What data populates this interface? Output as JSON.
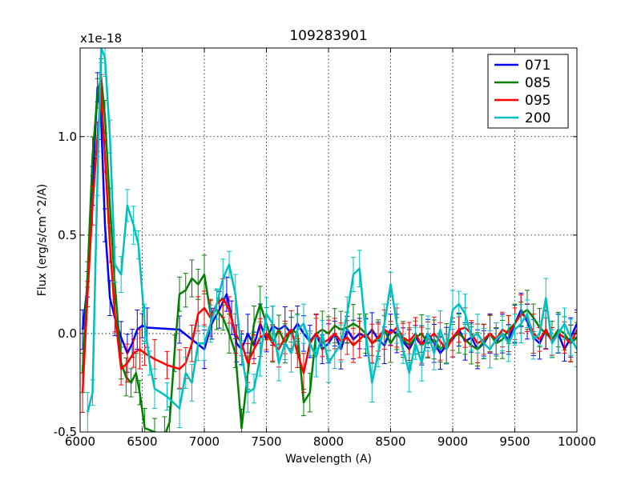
{
  "chart_data": {
    "type": "line",
    "title": "109283901",
    "xlabel": "Wavelength (A)",
    "ylabel": "Flux (erg/s/cm^2/A)",
    "y_scale_note": "x1e-18",
    "xlim": [
      6000,
      10000
    ],
    "ylim": [
      -0.5,
      1.45
    ],
    "grid": true,
    "legend_position": "top-right",
    "x_ticks": [
      6000,
      6500,
      7000,
      7500,
      8000,
      8500,
      9000,
      9500,
      10000
    ],
    "x_tick_labels": [
      "6000",
      "6500",
      "7000",
      "7500",
      "8000",
      "8500",
      "9000",
      "9500",
      "10000"
    ],
    "y_ticks": [
      -0.5,
      0.0,
      0.5,
      1.0
    ],
    "y_tick_labels": [
      "-0.5",
      "0.0",
      "0.5",
      "1.0"
    ],
    "series": [
      {
        "name": "071",
        "color": "#0000ff",
        "x": [
          6020,
          6060,
          6100,
          6140,
          6170,
          6200,
          6240,
          6280,
          6330,
          6380,
          6420,
          6460,
          6500,
          6540,
          6800,
          7000,
          7060,
          7120,
          7180,
          7220,
          7260,
          7300,
          7350,
          7400,
          7450,
          7500,
          7550,
          7600,
          7650,
          7700,
          7750,
          7800,
          7850,
          7900,
          7950,
          8000,
          8050,
          8100,
          8150,
          8200,
          8250,
          8300,
          8350,
          8400,
          8450,
          8500,
          8550,
          8600,
          8650,
          8700,
          8750,
          8800,
          8850,
          8900,
          8950,
          9000,
          9050,
          9100,
          9150,
          9200,
          9250,
          9300,
          9350,
          9400,
          9450,
          9500,
          9550,
          9600,
          9650,
          9700,
          9750,
          9800,
          9850,
          9900,
          9950,
          10000
        ],
        "y": [
          0.02,
          0.25,
          0.75,
          1.25,
          1.08,
          0.55,
          0.18,
          0.08,
          -0.02,
          -0.1,
          -0.05,
          0.02,
          0.04,
          0.03,
          0.02,
          -0.08,
          0.05,
          0.12,
          0.2,
          0.08,
          -0.05,
          -0.08,
          0.0,
          -0.06,
          0.05,
          -0.03,
          0.04,
          0.02,
          0.04,
          0.0,
          0.05,
          0.0,
          -0.04,
          0.0,
          -0.08,
          -0.05,
          0.0,
          -0.08,
          0.02,
          -0.03,
          0.0,
          -0.02,
          0.02,
          -0.03,
          -0.06,
          0.02,
          0.0,
          -0.04,
          -0.08,
          -0.02,
          -0.06,
          0.0,
          -0.05,
          -0.1,
          -0.06,
          -0.03,
          0.02,
          -0.04,
          -0.02,
          -0.08,
          -0.05,
          0.0,
          -0.04,
          0.0,
          -0.03,
          0.05,
          0.12,
          0.06,
          -0.02,
          -0.05,
          0.02,
          -0.04,
          0.0,
          -0.08,
          -0.02,
          0.05
        ]
      },
      {
        "name": "085",
        "color": "#008000",
        "x": [
          6020,
          6060,
          6100,
          6140,
          6170,
          6200,
          6240,
          6280,
          6330,
          6370,
          6410,
          6450,
          6480,
          6520,
          6600,
          6680,
          6720,
          6760,
          6800,
          6850,
          6900,
          6950,
          7000,
          7050,
          7100,
          7150,
          7200,
          7250,
          7300,
          7350,
          7400,
          7450,
          7500,
          7550,
          7600,
          7650,
          7700,
          7750,
          7800,
          7850,
          7900,
          7950,
          8000,
          8050,
          8100,
          8150,
          8200,
          8250,
          8300,
          8350,
          8400,
          8450,
          8500,
          8550,
          8600,
          8650,
          8700,
          8750,
          8800,
          8850,
          8900,
          8950,
          9000,
          9050,
          9100,
          9150,
          9200,
          9250,
          9300,
          9350,
          9400,
          9450,
          9500,
          9550,
          9600,
          9650,
          9700,
          9750,
          9800,
          9850,
          9900,
          9950,
          10000
        ],
        "y": [
          -0.2,
          0.3,
          0.9,
          1.22,
          1.3,
          1.1,
          0.65,
          0.25,
          -0.15,
          -0.22,
          -0.25,
          -0.2,
          -0.3,
          -0.48,
          -0.5,
          -0.52,
          -0.45,
          -0.1,
          0.2,
          0.22,
          0.28,
          0.25,
          0.3,
          0.1,
          0.12,
          0.08,
          0.0,
          -0.1,
          -0.48,
          -0.2,
          0.05,
          0.15,
          0.05,
          -0.05,
          0.02,
          -0.05,
          0.02,
          0.0,
          -0.35,
          -0.3,
          0.0,
          0.02,
          0.0,
          0.04,
          0.02,
          0.03,
          0.05,
          0.03,
          0.0,
          -0.05,
          -0.03,
          0.02,
          -0.05,
          0.0,
          -0.03,
          -0.06,
          -0.02,
          0.0,
          -0.05,
          -0.03,
          -0.08,
          -0.05,
          -0.02,
          0.0,
          -0.03,
          -0.06,
          -0.08,
          -0.04,
          0.0,
          -0.05,
          -0.03,
          0.02,
          0.05,
          0.1,
          0.12,
          0.08,
          0.03,
          0.0,
          -0.03,
          0.02,
          0.0,
          -0.05,
          -0.02
        ]
      },
      {
        "name": "095",
        "color": "#ff0000",
        "x": [
          6020,
          6060,
          6100,
          6140,
          6170,
          6200,
          6240,
          6280,
          6330,
          6380,
          6430,
          6480,
          6520,
          6600,
          6700,
          6800,
          6850,
          6900,
          6950,
          7000,
          7050,
          7100,
          7150,
          7200,
          7250,
          7300,
          7350,
          7400,
          7450,
          7500,
          7550,
          7600,
          7650,
          7700,
          7750,
          7800,
          7850,
          7900,
          7950,
          8000,
          8050,
          8100,
          8150,
          8200,
          8250,
          8300,
          8350,
          8400,
          8450,
          8500,
          8550,
          8600,
          8650,
          8700,
          8750,
          8800,
          8850,
          8900,
          8950,
          9000,
          9050,
          9100,
          9150,
          9200,
          9250,
          9300,
          9350,
          9400,
          9450,
          9500,
          9550,
          9600,
          9650,
          9700,
          9750,
          9800,
          9850,
          9900,
          9950,
          10000
        ],
        "y": [
          -0.3,
          0.2,
          0.65,
          1.0,
          1.22,
          0.9,
          0.45,
          0.1,
          -0.18,
          -0.15,
          -0.1,
          -0.08,
          -0.1,
          -0.13,
          -0.16,
          -0.18,
          -0.15,
          -0.05,
          0.1,
          0.13,
          0.08,
          0.15,
          0.18,
          0.12,
          0.0,
          -0.05,
          -0.15,
          -0.08,
          -0.02,
          0.0,
          -0.05,
          -0.08,
          -0.02,
          0.02,
          -0.1,
          -0.2,
          -0.05,
          0.0,
          -0.05,
          -0.03,
          0.0,
          -0.04,
          -0.02,
          -0.06,
          -0.03,
          0.0,
          -0.05,
          -0.02,
          0.02,
          0.0,
          0.03,
          -0.02,
          -0.04,
          0.0,
          -0.06,
          -0.03,
          0.0,
          -0.04,
          -0.08,
          -0.02,
          0.02,
          0.03,
          0.0,
          -0.05,
          -0.03,
          0.0,
          -0.03,
          0.02,
          0.0,
          0.05,
          0.1,
          0.08,
          0.0,
          -0.03,
          0.02,
          -0.04,
          0.0,
          -0.02,
          -0.05,
          0.02
        ]
      },
      {
        "name": "200",
        "color": "#00bfbf",
        "x": [
          6060,
          6100,
          6140,
          6170,
          6200,
          6240,
          6280,
          6330,
          6380,
          6430,
          6470,
          6520,
          6560,
          6600,
          6700,
          6800,
          6850,
          6900,
          6950,
          7000,
          7050,
          7100,
          7150,
          7200,
          7250,
          7300,
          7350,
          7400,
          7450,
          7500,
          7550,
          7600,
          7650,
          7700,
          7750,
          7800,
          7850,
          7900,
          7950,
          8000,
          8050,
          8100,
          8150,
          8200,
          8250,
          8300,
          8350,
          8400,
          8450,
          8500,
          8550,
          8600,
          8650,
          8700,
          8750,
          8800,
          8850,
          8900,
          8950,
          9000,
          9050,
          9100,
          9150,
          9200,
          9250,
          9300,
          9350,
          9400,
          9450,
          9500,
          9550,
          9600,
          9650,
          9700,
          9750,
          9800,
          9850,
          9900,
          9950,
          10000
        ],
        "y": [
          -0.4,
          -0.3,
          0.8,
          1.45,
          1.4,
          1.0,
          0.35,
          0.3,
          0.65,
          0.55,
          0.45,
          0.05,
          -0.15,
          -0.28,
          -0.32,
          -0.38,
          -0.2,
          -0.25,
          -0.05,
          -0.05,
          0.05,
          0.15,
          0.28,
          0.35,
          0.2,
          -0.1,
          -0.3,
          -0.28,
          -0.12,
          0.1,
          0.05,
          -0.15,
          -0.05,
          -0.1,
          0.02,
          0.05,
          -0.05,
          -0.12,
          0.0,
          -0.15,
          -0.1,
          -0.05,
          0.1,
          0.3,
          0.33,
          0.0,
          -0.25,
          -0.1,
          0.05,
          0.25,
          0.05,
          -0.08,
          -0.2,
          -0.05,
          -0.15,
          0.0,
          -0.1,
          0.02,
          -0.08,
          0.12,
          0.15,
          0.1,
          -0.02,
          0.0,
          -0.05,
          -0.08,
          -0.03,
          0.0,
          -0.05,
          0.02,
          0.05,
          0.1,
          -0.03,
          0.0,
          0.18,
          -0.05,
          0.0,
          0.05,
          -0.02,
          -0.08
        ]
      }
    ]
  }
}
